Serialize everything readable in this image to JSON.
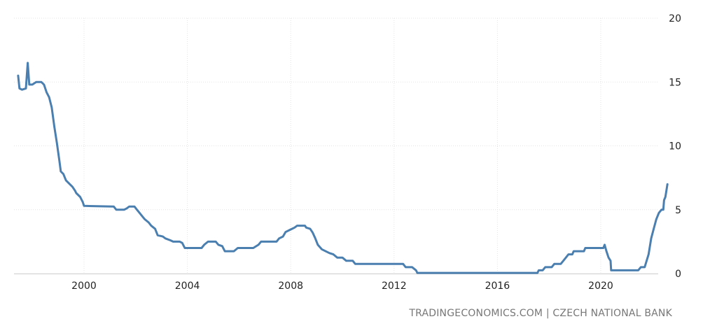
{
  "source": "TRADINGECONOMICS.COM | CZECH NATIONAL BANK",
  "colors": {
    "line": "#4a7fb0",
    "grid": "#e3e3e3",
    "axis": "#cccccc"
  },
  "chart_data": {
    "type": "line",
    "title": "",
    "xlabel": "",
    "ylabel": "",
    "xlim": [
      1997.4,
      2022.6
    ],
    "ylim": [
      0,
      20
    ],
    "x_ticks": [
      2000,
      2004,
      2008,
      2012,
      2016,
      2020
    ],
    "y_ticks": [
      0,
      5,
      10,
      15,
      20
    ],
    "grid": true,
    "legend": "none",
    "series": [
      {
        "values": [
          [
            1997.45,
            15.5
          ],
          [
            1997.5,
            14.5
          ],
          [
            1997.6,
            14.4
          ],
          [
            1997.75,
            14.5
          ],
          [
            1997.82,
            16.5
          ],
          [
            1997.88,
            14.8
          ],
          [
            1998.0,
            14.8
          ],
          [
            1998.15,
            15.0
          ],
          [
            1998.35,
            15.0
          ],
          [
            1998.45,
            14.8
          ],
          [
            1998.55,
            14.2
          ],
          [
            1998.65,
            13.8
          ],
          [
            1998.75,
            13.0
          ],
          [
            1998.85,
            11.5
          ],
          [
            1998.95,
            10.2
          ],
          [
            1999.05,
            8.8
          ],
          [
            1999.1,
            8.0
          ],
          [
            1999.2,
            7.8
          ],
          [
            1999.3,
            7.3
          ],
          [
            1999.45,
            7.0
          ],
          [
            1999.55,
            6.8
          ],
          [
            1999.65,
            6.5
          ],
          [
            1999.7,
            6.3
          ],
          [
            1999.85,
            6.0
          ],
          [
            1999.95,
            5.6
          ],
          [
            2000.0,
            5.3
          ],
          [
            2001.15,
            5.25
          ],
          [
            2001.25,
            5.0
          ],
          [
            2001.55,
            5.0
          ],
          [
            2001.65,
            5.1
          ],
          [
            2001.75,
            5.25
          ],
          [
            2001.95,
            5.25
          ],
          [
            2002.05,
            5.0
          ],
          [
            2002.15,
            4.75
          ],
          [
            2002.25,
            4.5
          ],
          [
            2002.35,
            4.25
          ],
          [
            2002.5,
            4.0
          ],
          [
            2002.6,
            3.75
          ],
          [
            2002.75,
            3.5
          ],
          [
            2002.85,
            3.0
          ],
          [
            2003.05,
            2.9
          ],
          [
            2003.15,
            2.75
          ],
          [
            2003.35,
            2.6
          ],
          [
            2003.45,
            2.5
          ],
          [
            2003.7,
            2.5
          ],
          [
            2003.8,
            2.4
          ],
          [
            2003.9,
            2.0
          ],
          [
            2004.55,
            2.0
          ],
          [
            2004.65,
            2.25
          ],
          [
            2004.8,
            2.5
          ],
          [
            2005.1,
            2.5
          ],
          [
            2005.2,
            2.25
          ],
          [
            2005.35,
            2.15
          ],
          [
            2005.45,
            1.75
          ],
          [
            2005.8,
            1.75
          ],
          [
            2005.95,
            2.0
          ],
          [
            2006.55,
            2.0
          ],
          [
            2006.75,
            2.25
          ],
          [
            2006.85,
            2.5
          ],
          [
            2007.45,
            2.5
          ],
          [
            2007.55,
            2.75
          ],
          [
            2007.7,
            2.9
          ],
          [
            2007.8,
            3.25
          ],
          [
            2007.95,
            3.4
          ],
          [
            2008.05,
            3.5
          ],
          [
            2008.15,
            3.6
          ],
          [
            2008.25,
            3.75
          ],
          [
            2008.55,
            3.75
          ],
          [
            2008.6,
            3.6
          ],
          [
            2008.75,
            3.5
          ],
          [
            2008.85,
            3.2
          ],
          [
            2008.95,
            2.75
          ],
          [
            2009.05,
            2.25
          ],
          [
            2009.2,
            1.9
          ],
          [
            2009.35,
            1.75
          ],
          [
            2009.5,
            1.6
          ],
          [
            2009.65,
            1.5
          ],
          [
            2009.8,
            1.25
          ],
          [
            2010.0,
            1.25
          ],
          [
            2010.15,
            1.0
          ],
          [
            2010.4,
            1.0
          ],
          [
            2010.5,
            0.75
          ],
          [
            2012.35,
            0.75
          ],
          [
            2012.45,
            0.5
          ],
          [
            2012.7,
            0.5
          ],
          [
            2012.85,
            0.25
          ],
          [
            2012.9,
            0.05
          ],
          [
            2017.55,
            0.05
          ],
          [
            2017.6,
            0.25
          ],
          [
            2017.75,
            0.25
          ],
          [
            2017.85,
            0.5
          ],
          [
            2018.1,
            0.5
          ],
          [
            2018.2,
            0.75
          ],
          [
            2018.45,
            0.75
          ],
          [
            2018.55,
            1.0
          ],
          [
            2018.65,
            1.25
          ],
          [
            2018.75,
            1.5
          ],
          [
            2018.9,
            1.5
          ],
          [
            2018.95,
            1.75
          ],
          [
            2019.35,
            1.75
          ],
          [
            2019.4,
            2.0
          ],
          [
            2020.1,
            2.0
          ],
          [
            2020.15,
            2.25
          ],
          [
            2020.22,
            1.75
          ],
          [
            2020.3,
            1.25
          ],
          [
            2020.38,
            1.0
          ],
          [
            2020.4,
            0.25
          ],
          [
            2021.45,
            0.25
          ],
          [
            2021.55,
            0.5
          ],
          [
            2021.7,
            0.5
          ],
          [
            2021.85,
            1.5
          ],
          [
            2021.95,
            2.75
          ],
          [
            2022.05,
            3.5
          ],
          [
            2022.15,
            4.25
          ],
          [
            2022.25,
            4.75
          ],
          [
            2022.35,
            5.0
          ],
          [
            2022.42,
            5.0
          ],
          [
            2022.45,
            5.75
          ],
          [
            2022.5,
            6.0
          ],
          [
            2022.58,
            7.0
          ]
        ]
      }
    ]
  }
}
